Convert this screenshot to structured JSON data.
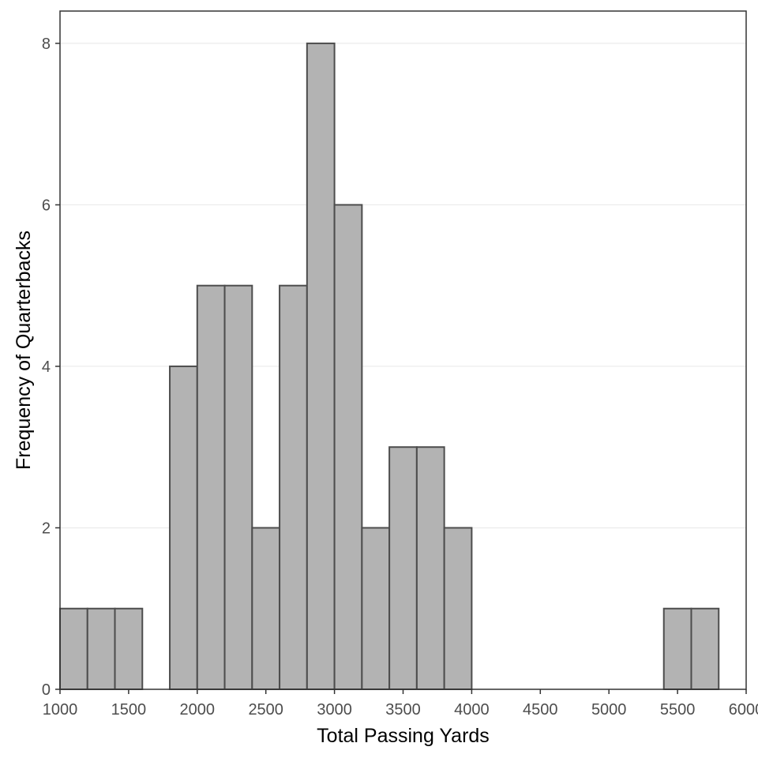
{
  "chart_data": {
    "type": "bar",
    "title": "",
    "xlabel": "Total Passing Yards",
    "ylabel": "Frequency of Quarterbacks",
    "bin_width": 200,
    "bins": [
      {
        "x0": 1000,
        "x1": 1200,
        "count": 1
      },
      {
        "x0": 1200,
        "x1": 1400,
        "count": 1
      },
      {
        "x0": 1400,
        "x1": 1600,
        "count": 1
      },
      {
        "x0": 1600,
        "x1": 1800,
        "count": 0
      },
      {
        "x0": 1800,
        "x1": 2000,
        "count": 4
      },
      {
        "x0": 2000,
        "x1": 2200,
        "count": 5
      },
      {
        "x0": 2200,
        "x1": 2400,
        "count": 5
      },
      {
        "x0": 2400,
        "x1": 2600,
        "count": 2
      },
      {
        "x0": 2600,
        "x1": 2800,
        "count": 5
      },
      {
        "x0": 2800,
        "x1": 3000,
        "count": 8
      },
      {
        "x0": 3000,
        "x1": 3200,
        "count": 6
      },
      {
        "x0": 3200,
        "x1": 3400,
        "count": 2
      },
      {
        "x0": 3400,
        "x1": 3600,
        "count": 3
      },
      {
        "x0": 3600,
        "x1": 3800,
        "count": 3
      },
      {
        "x0": 3800,
        "x1": 4000,
        "count": 2
      },
      {
        "x0": 4000,
        "x1": 4200,
        "count": 0
      },
      {
        "x0": 4200,
        "x1": 4400,
        "count": 0
      },
      {
        "x0": 4400,
        "x1": 4600,
        "count": 0
      },
      {
        "x0": 4600,
        "x1": 4800,
        "count": 0
      },
      {
        "x0": 4800,
        "x1": 5000,
        "count": 0
      },
      {
        "x0": 5000,
        "x1": 5200,
        "count": 0
      },
      {
        "x0": 5200,
        "x1": 5400,
        "count": 0
      },
      {
        "x0": 5400,
        "x1": 5600,
        "count": 1
      },
      {
        "x0": 5600,
        "x1": 5800,
        "count": 1
      }
    ],
    "xlim": [
      1000,
      6000
    ],
    "ylim": [
      0,
      8.4
    ],
    "x_ticks": [
      1000,
      1500,
      2000,
      2500,
      3000,
      3500,
      4000,
      4500,
      5000,
      5500,
      6000
    ],
    "y_ticks": [
      0,
      2,
      4,
      6,
      8
    ],
    "grid": "horizontal major",
    "legend": "none",
    "colors": {
      "bar_fill": "#b3b3b3",
      "bar_stroke": "#4d4d4d",
      "grid": "#ebebeb",
      "panel_border": "#333333",
      "tick_text": "#4d4d4d",
      "title_text": "#000000"
    }
  }
}
